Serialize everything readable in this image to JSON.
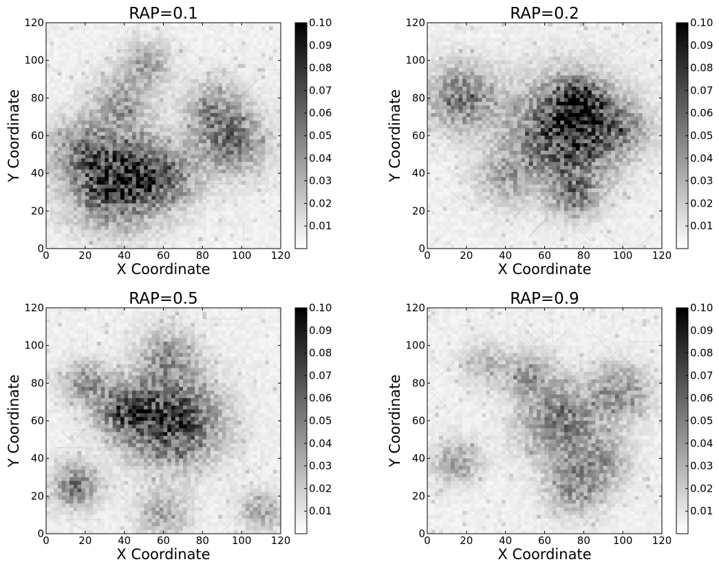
{
  "figure": {
    "colorbar_colors": {
      "low": "#ffffff",
      "high": "#000000"
    }
  },
  "chart_data": [
    {
      "type": "heatmap",
      "title": "RAP=0.1",
      "xlabel": "X Coordinate",
      "ylabel": "Y Coordinate",
      "xlim": [
        0,
        120
      ],
      "ylim": [
        0,
        120
      ],
      "xticks": [
        0,
        20,
        40,
        60,
        80,
        100,
        120
      ],
      "yticks": [
        0,
        20,
        40,
        60,
        80,
        100,
        120
      ],
      "colorbar": {
        "range": [
          0,
          0.1
        ],
        "ticks": [
          "0.01",
          "0.02",
          "0.03",
          "0.04",
          "0.05",
          "0.06",
          "0.07",
          "0.08",
          "0.09",
          "0.10"
        ]
      },
      "hotspots": [
        {
          "x": 35,
          "y": 37,
          "r": 16,
          "v": 0.075
        },
        {
          "x": 95,
          "y": 57,
          "r": 12,
          "v": 0.045
        },
        {
          "x": 60,
          "y": 38,
          "r": 12,
          "v": 0.04
        },
        {
          "x": 38,
          "y": 78,
          "r": 10,
          "v": 0.03
        },
        {
          "x": 52,
          "y": 98,
          "r": 8,
          "v": 0.03
        },
        {
          "x": 85,
          "y": 75,
          "r": 10,
          "v": 0.03
        },
        {
          "x": 15,
          "y": 55,
          "r": 10,
          "v": 0.025
        }
      ]
    },
    {
      "type": "heatmap",
      "title": "RAP=0.2",
      "xlabel": "X Coordinate",
      "ylabel": "Y Coordinate",
      "xlim": [
        0,
        120
      ],
      "ylim": [
        0,
        120
      ],
      "xticks": [
        0,
        20,
        40,
        60,
        80,
        100,
        120
      ],
      "yticks": [
        0,
        20,
        40,
        60,
        80,
        100,
        120
      ],
      "colorbar": {
        "range": [
          0,
          0.1
        ],
        "ticks": [
          "0.01",
          "0.02",
          "0.03",
          "0.04",
          "0.05",
          "0.06",
          "0.07",
          "0.08",
          "0.09",
          "0.10"
        ]
      },
      "hotspots": [
        {
          "x": 72,
          "y": 62,
          "r": 18,
          "v": 0.075
        },
        {
          "x": 78,
          "y": 78,
          "r": 8,
          "v": 0.05
        },
        {
          "x": 18,
          "y": 80,
          "r": 12,
          "v": 0.045
        },
        {
          "x": 75,
          "y": 28,
          "r": 8,
          "v": 0.04
        },
        {
          "x": 40,
          "y": 38,
          "r": 10,
          "v": 0.025
        },
        {
          "x": 100,
          "y": 65,
          "r": 10,
          "v": 0.025
        }
      ]
    },
    {
      "type": "heatmap",
      "title": "RAP=0.5",
      "xlabel": "X Coordinate",
      "ylabel": "Y Coordinate",
      "xlim": [
        0,
        120
      ],
      "ylim": [
        0,
        120
      ],
      "xticks": [
        0,
        20,
        40,
        60,
        80,
        100,
        120
      ],
      "yticks": [
        0,
        20,
        40,
        60,
        80,
        100,
        120
      ],
      "colorbar": {
        "range": [
          0,
          0.1
        ],
        "ticks": [
          "0.01",
          "0.02",
          "0.03",
          "0.04",
          "0.05",
          "0.06",
          "0.07",
          "0.08",
          "0.09",
          "0.10"
        ]
      },
      "hotspots": [
        {
          "x": 65,
          "y": 60,
          "r": 16,
          "v": 0.07
        },
        {
          "x": 40,
          "y": 65,
          "r": 10,
          "v": 0.045
        },
        {
          "x": 15,
          "y": 25,
          "r": 8,
          "v": 0.045
        },
        {
          "x": 20,
          "y": 80,
          "r": 8,
          "v": 0.035
        },
        {
          "x": 62,
          "y": 95,
          "r": 10,
          "v": 0.03
        },
        {
          "x": 60,
          "y": 10,
          "r": 8,
          "v": 0.03
        },
        {
          "x": 110,
          "y": 12,
          "r": 7,
          "v": 0.03
        }
      ]
    },
    {
      "type": "heatmap",
      "title": "RAP=0.9",
      "xlabel": "X Coordinate",
      "ylabel": "Y Coordinate",
      "xlim": [
        0,
        120
      ],
      "ylim": [
        0,
        120
      ],
      "xticks": [
        0,
        20,
        40,
        60,
        80,
        100,
        120
      ],
      "yticks": [
        0,
        20,
        40,
        60,
        80,
        100,
        120
      ],
      "colorbar": {
        "range": [
          0,
          0.1
        ],
        "ticks": [
          "0.01",
          "0.02",
          "0.03",
          "0.04",
          "0.05",
          "0.06",
          "0.07",
          "0.08",
          "0.09",
          "0.10"
        ]
      },
      "hotspots": [
        {
          "x": 68,
          "y": 60,
          "r": 14,
          "v": 0.045
        },
        {
          "x": 75,
          "y": 25,
          "r": 10,
          "v": 0.035
        },
        {
          "x": 100,
          "y": 75,
          "r": 10,
          "v": 0.035
        },
        {
          "x": 52,
          "y": 85,
          "r": 8,
          "v": 0.03
        },
        {
          "x": 15,
          "y": 38,
          "r": 8,
          "v": 0.03
        },
        {
          "x": 90,
          "y": 38,
          "r": 10,
          "v": 0.025
        },
        {
          "x": 30,
          "y": 90,
          "r": 8,
          "v": 0.02
        }
      ]
    }
  ]
}
